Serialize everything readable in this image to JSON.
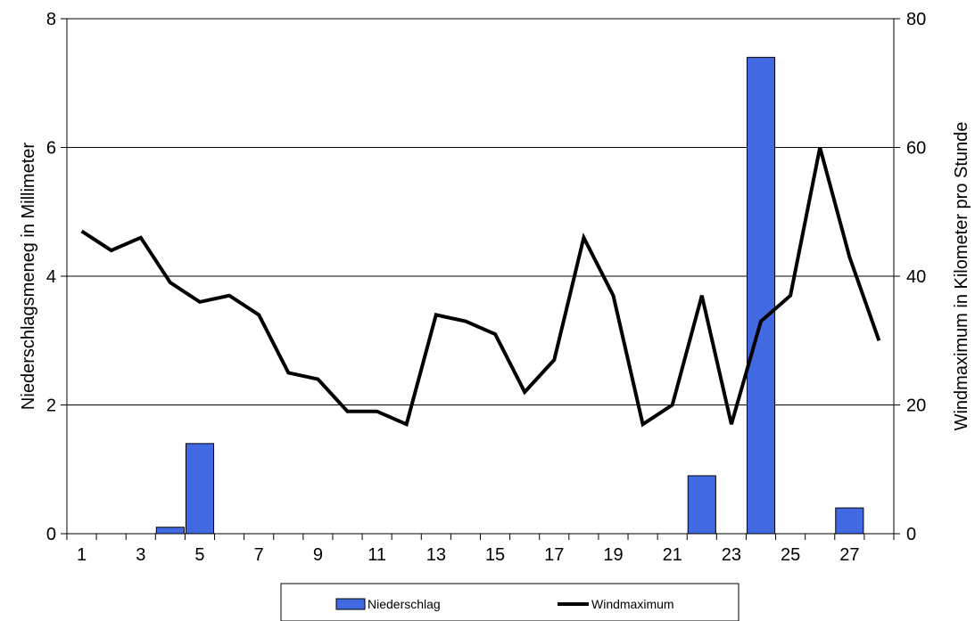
{
  "chart_data": {
    "type": "bar",
    "x": [
      1,
      2,
      3,
      4,
      5,
      6,
      7,
      8,
      9,
      10,
      11,
      12,
      13,
      14,
      15,
      16,
      17,
      18,
      19,
      20,
      21,
      22,
      23,
      24,
      25,
      26,
      27,
      28
    ],
    "x_tick_labels": [
      "1",
      "3",
      "5",
      "7",
      "9",
      "11",
      "13",
      "15",
      "17",
      "19",
      "21",
      "23",
      "25",
      "27"
    ],
    "series": [
      {
        "name": "Niederschlag",
        "type": "bar",
        "axis": "left",
        "color": "#4169E1",
        "values": [
          0,
          0,
          0,
          0.1,
          1.4,
          0,
          0,
          0,
          0,
          0,
          0,
          0,
          0,
          0,
          0,
          0,
          0,
          0,
          0,
          0,
          0,
          0.9,
          0,
          7.4,
          0,
          0,
          0.4,
          0
        ]
      },
      {
        "name": "Windmaximum",
        "type": "line",
        "axis": "right",
        "color": "#000000",
        "values": [
          47,
          44,
          46,
          39,
          36,
          37,
          34,
          25,
          24,
          19,
          19,
          17,
          34,
          33,
          31,
          22,
          27,
          46,
          37,
          17,
          20,
          37,
          17,
          33,
          37,
          60,
          43,
          30
        ]
      }
    ],
    "ylabel": "Niederschlagsmeneg in Millimeter",
    "ylabel_right": "Windmaximum in Kilometer pro Stunde",
    "ylim": [
      0,
      8
    ],
    "ylim_right": [
      0,
      80
    ],
    "y_ticks": [
      "0",
      "2",
      "4",
      "6",
      "8"
    ],
    "y_ticks_right": [
      "0",
      "20",
      "40",
      "60",
      "80"
    ],
    "grid": "horizontal",
    "legend_position": "bottom"
  }
}
